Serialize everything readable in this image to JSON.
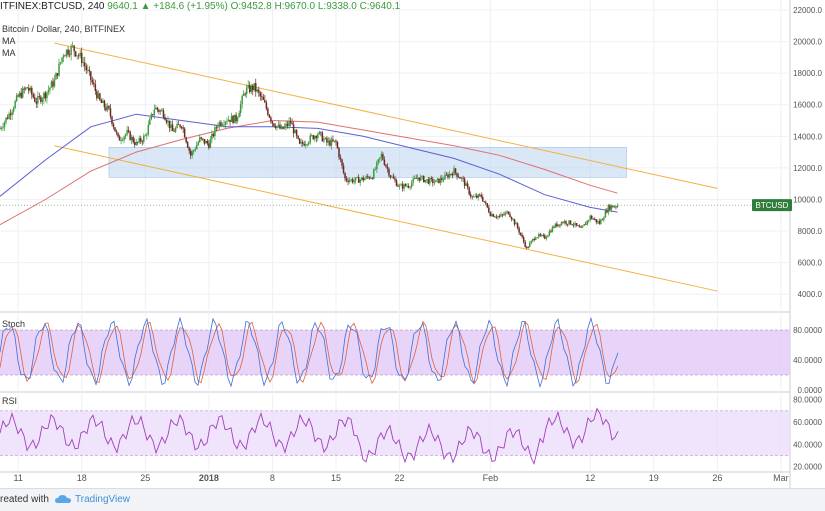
{
  "header": {
    "symbol": "ITFINEX:BTCUSD, 240",
    "change": "9640.1 ▲ +184.6 (+1.95%)",
    "ohlc": "O:9452.8 H:9670.0 L:9338.0 C:9640.1",
    "title": "Bitcoin / Dollar, 240, BITFINEX",
    "ma1": "MA",
    "ma2": "MA"
  },
  "footer": {
    "created_with": "reated with",
    "brand": "TradingView"
  },
  "colors": {
    "up": "#3c9a3c",
    "down": "#6b2a20",
    "ma_fast": "#5a5fd6",
    "ma_slow": "#e07070",
    "channel": "#f5b041",
    "zone": "#b9d4ee",
    "stoch_fill": "#e2c9f8",
    "rsi_fill": "#ecdcfb",
    "rsi_line": "#a040b8",
    "stoch_k": "#3f6fd6",
    "stoch_d": "#e06040",
    "price_badge": "#2f7d3b"
  },
  "chart_data": [
    {
      "type": "candlestick",
      "title": "Bitcoin / Dollar, 240, BITFINEX",
      "ylim": [
        3000,
        22000
      ],
      "yticks": [
        "22000.0",
        "20000.0",
        "18000.0",
        "16000.0",
        "14000.0",
        "12000.0",
        "10000.0",
        "8000.0",
        "6000.0",
        "4000.0"
      ],
      "ytick_values": [
        22000,
        20000,
        18000,
        16000,
        14000,
        12000,
        10000,
        8000,
        6000,
        4000
      ],
      "xticks": [
        "11",
        "18",
        "25",
        "2018",
        "8",
        "15",
        "22",
        "Feb",
        "12",
        "19",
        "26",
        "Mar"
      ],
      "x_range": [
        "2017-12-09",
        "2018-03-06"
      ],
      "x_tick_dates": [
        "2017-12-11",
        "2017-12-18",
        "2017-12-25",
        "2018-01-01",
        "2018-01-08",
        "2018-01-15",
        "2018-01-22",
        "2018-02-01",
        "2018-02-12",
        "2018-02-19",
        "2018-02-26",
        "2018-03-05"
      ],
      "last_price_label": "BTCUSD",
      "last_price": 9640.1,
      "close_path": [
        [
          "2017-12-09",
          14500
        ],
        [
          "2017-12-10",
          15400
        ],
        [
          "2017-12-11",
          16500
        ],
        [
          "2017-12-12",
          17100
        ],
        [
          "2017-12-13",
          16200
        ],
        [
          "2017-12-14",
          16700
        ],
        [
          "2017-12-15",
          17500
        ],
        [
          "2017-12-16",
          19300
        ],
        [
          "2017-12-17",
          19600
        ],
        [
          "2017-12-18",
          18900
        ],
        [
          "2017-12-19",
          17600
        ],
        [
          "2017-12-20",
          16200
        ],
        [
          "2017-12-21",
          15600
        ],
        [
          "2017-12-22",
          13800
        ],
        [
          "2017-12-23",
          14200
        ],
        [
          "2017-12-24",
          13500
        ],
        [
          "2017-12-25",
          14000
        ],
        [
          "2017-12-26",
          15800
        ],
        [
          "2017-12-27",
          15500
        ],
        [
          "2017-12-28",
          14300
        ],
        [
          "2017-12-29",
          14800
        ],
        [
          "2017-12-30",
          12800
        ],
        [
          "2017-12-31",
          13800
        ],
        [
          "2018-01-01",
          13500
        ],
        [
          "2018-01-02",
          14800
        ],
        [
          "2018-01-03",
          15100
        ],
        [
          "2018-01-04",
          15100
        ],
        [
          "2018-01-05",
          16900
        ],
        [
          "2018-01-06",
          17100
        ],
        [
          "2018-01-07",
          16200
        ],
        [
          "2018-01-08",
          14900
        ],
        [
          "2018-01-09",
          14400
        ],
        [
          "2018-01-10",
          14900
        ],
        [
          "2018-01-11",
          13400
        ],
        [
          "2018-01-12",
          13800
        ],
        [
          "2018-01-13",
          14200
        ],
        [
          "2018-01-14",
          13600
        ],
        [
          "2018-01-15",
          13600
        ],
        [
          "2018-01-16",
          11300
        ],
        [
          "2018-01-17",
          11200
        ],
        [
          "2018-01-18",
          11300
        ],
        [
          "2018-01-19",
          11500
        ],
        [
          "2018-01-20",
          12800
        ],
        [
          "2018-01-21",
          11500
        ],
        [
          "2018-01-22",
          10800
        ],
        [
          "2018-01-23",
          10900
        ],
        [
          "2018-01-24",
          11400
        ],
        [
          "2018-01-25",
          11200
        ],
        [
          "2018-01-26",
          11100
        ],
        [
          "2018-01-27",
          11400
        ],
        [
          "2018-01-28",
          11800
        ],
        [
          "2018-01-29",
          11200
        ],
        [
          "2018-01-30",
          10100
        ],
        [
          "2018-01-31",
          10200
        ],
        [
          "2018-02-01",
          9100
        ],
        [
          "2018-02-02",
          8900
        ],
        [
          "2018-02-03",
          9200
        ],
        [
          "2018-02-04",
          8200
        ],
        [
          "2018-02-05",
          6900
        ],
        [
          "2018-02-06",
          7700
        ],
        [
          "2018-02-07",
          7600
        ],
        [
          "2018-02-08",
          8300
        ],
        [
          "2018-02-09",
          8600
        ],
        [
          "2018-02-10",
          8500
        ],
        [
          "2018-02-11",
          8100
        ],
        [
          "2018-02-12",
          8900
        ],
        [
          "2018-02-13",
          8500
        ],
        [
          "2018-02-14",
          9500
        ],
        [
          "2018-02-15",
          9640.1
        ]
      ],
      "ma_fast": [
        [
          "2017-12-09",
          10200
        ],
        [
          "2017-12-14",
          12500
        ],
        [
          "2017-12-19",
          14600
        ],
        [
          "2017-12-24",
          15400
        ],
        [
          "2017-12-29",
          15000
        ],
        [
          "2018-01-03",
          14600
        ],
        [
          "2018-01-08",
          14600
        ],
        [
          "2018-01-13",
          14500
        ],
        [
          "2018-01-18",
          14000
        ],
        [
          "2018-01-23",
          13300
        ],
        [
          "2018-01-28",
          12600
        ],
        [
          "2018-02-02",
          11600
        ],
        [
          "2018-02-07",
          10300
        ],
        [
          "2018-02-12",
          9500
        ],
        [
          "2018-02-15",
          9200
        ]
      ],
      "ma_slow": [
        [
          "2017-12-09",
          8400
        ],
        [
          "2017-12-14",
          10000
        ],
        [
          "2017-12-19",
          11800
        ],
        [
          "2017-12-24",
          13000
        ],
        [
          "2017-12-29",
          13800
        ],
        [
          "2018-01-03",
          14500
        ],
        [
          "2018-01-08",
          15000
        ],
        [
          "2018-01-13",
          14900
        ],
        [
          "2018-01-18",
          14400
        ],
        [
          "2018-01-23",
          13900
        ],
        [
          "2018-01-28",
          13400
        ],
        [
          "2018-02-02",
          12800
        ],
        [
          "2018-02-07",
          11900
        ],
        [
          "2018-02-12",
          10900
        ],
        [
          "2018-02-15",
          10400
        ]
      ],
      "channel_upper": [
        [
          "2017-12-15",
          19900
        ],
        [
          "2018-02-26",
          10700
        ]
      ],
      "channel_lower": [
        [
          "2017-12-15",
          13400
        ],
        [
          "2018-02-26",
          4200
        ]
      ],
      "resistance_zone": {
        "from": [
          "2017-12-21",
          13300
        ],
        "to": [
          "2018-02-16",
          11400
        ]
      }
    },
    {
      "type": "line",
      "title": "Stoch",
      "ylim": [
        0,
        100
      ],
      "yticks": [
        "80.0000",
        "40.0000",
        "0.0000"
      ],
      "ytick_values": [
        80,
        40,
        0
      ],
      "band": [
        20,
        80
      ]
    },
    {
      "type": "line",
      "title": "RSI",
      "ylim": [
        17,
        85
      ],
      "yticks": [
        "80.0000",
        "60.0000",
        "40.0000",
        "20.0000"
      ],
      "ytick_values": [
        80,
        60,
        40,
        20
      ],
      "band": [
        30,
        70
      ]
    }
  ]
}
